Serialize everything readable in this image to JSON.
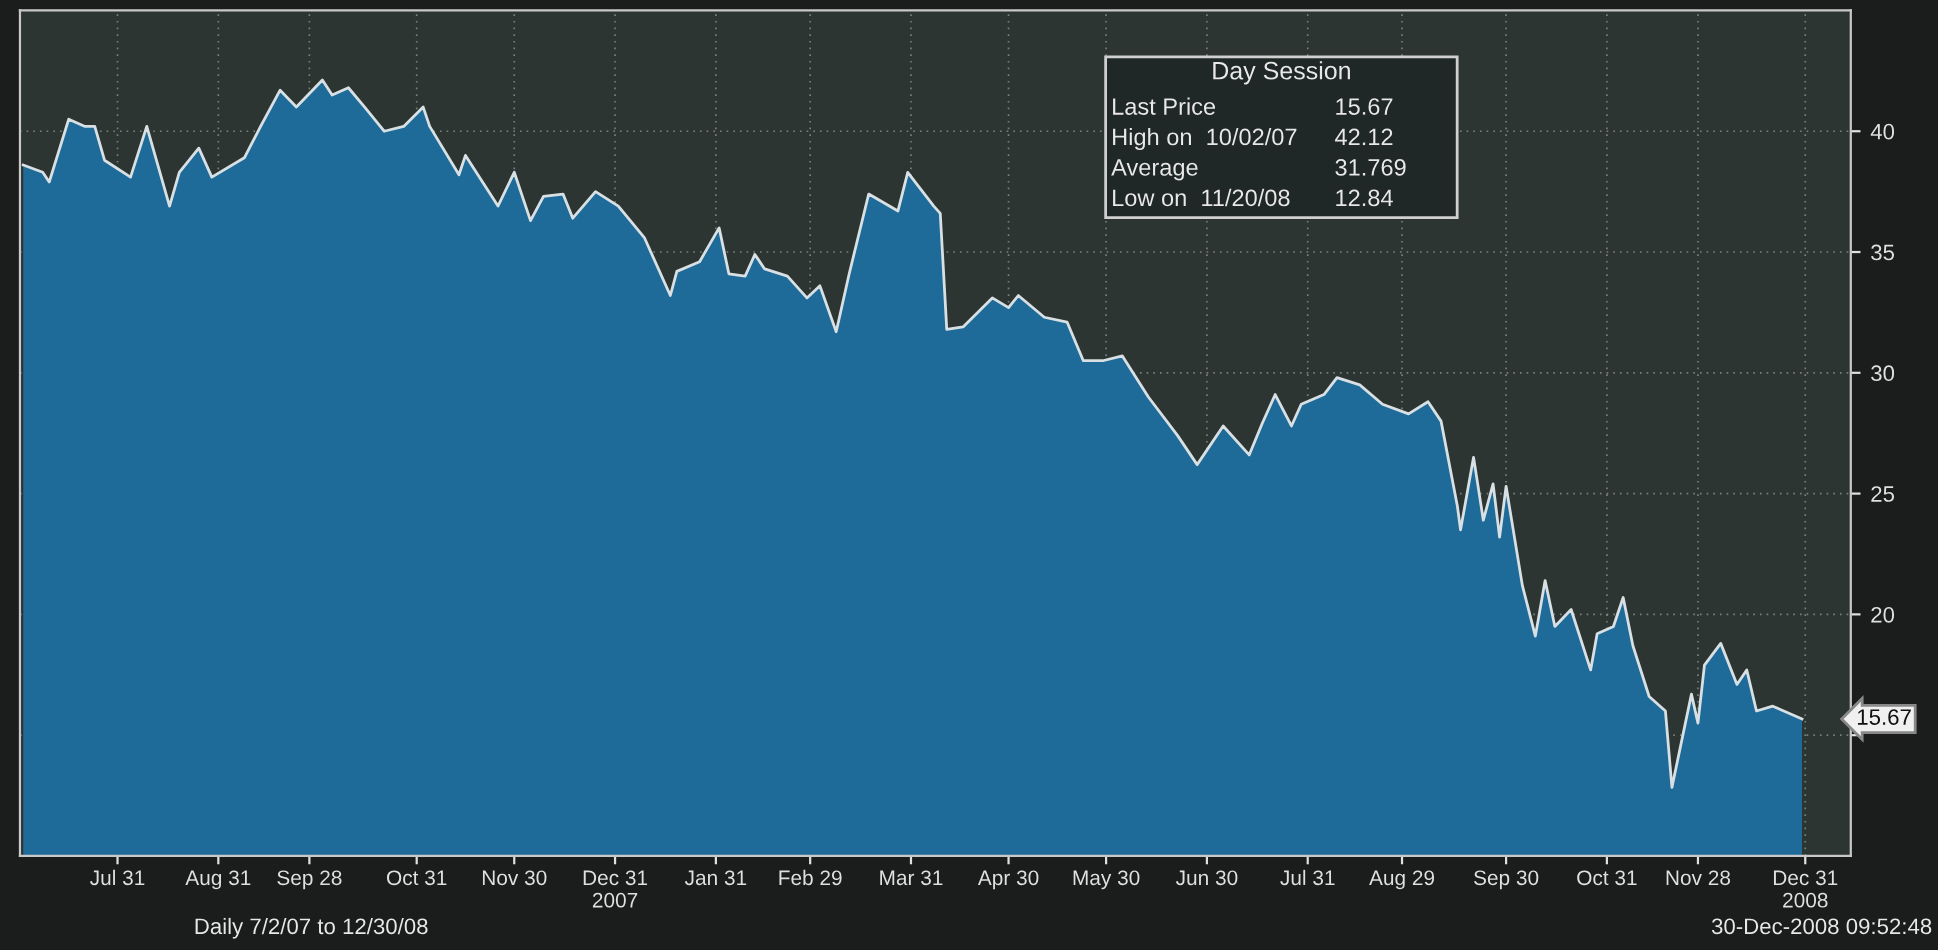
{
  "chart_data": {
    "type": "area",
    "x": [
      "2007-07-02",
      "2007-07-08",
      "2007-07-10",
      "2007-07-16",
      "2007-07-21",
      "2007-07-24",
      "2007-07-27",
      "2007-08-04",
      "2007-08-09",
      "2007-08-16",
      "2007-08-19",
      "2007-08-25",
      "2007-08-29",
      "2007-09-08",
      "2007-09-13",
      "2007-09-19",
      "2007-09-24",
      "2007-10-02",
      "2007-10-05",
      "2007-10-10",
      "2007-10-15",
      "2007-10-21",
      "2007-10-27",
      "2007-11-02",
      "2007-11-04",
      "2007-11-13",
      "2007-11-15",
      "2007-11-25",
      "2007-11-30",
      "2007-12-05",
      "2007-12-09",
      "2007-12-15",
      "2007-12-18",
      "2007-12-25",
      "2008-01-01",
      "2008-01-09",
      "2008-01-17",
      "2008-01-19",
      "2008-01-26",
      "2008-02-01",
      "2008-02-04",
      "2008-02-09",
      "2008-02-12",
      "2008-02-15",
      "2008-02-22",
      "2008-02-28",
      "2008-03-03",
      "2008-03-08",
      "2008-03-12",
      "2008-03-18",
      "2008-03-27",
      "2008-03-30",
      "2008-04-07",
      "2008-04-09",
      "2008-04-11",
      "2008-04-16",
      "2008-04-25",
      "2008-04-30",
      "2008-05-03",
      "2008-05-11",
      "2008-05-18",
      "2008-05-23",
      "2008-05-29",
      "2008-06-04",
      "2008-06-12",
      "2008-06-21",
      "2008-06-27",
      "2008-07-05",
      "2008-07-13",
      "2008-07-17",
      "2008-07-21",
      "2008-07-26",
      "2008-07-29",
      "2008-08-05",
      "2008-08-09",
      "2008-08-16",
      "2008-08-23",
      "2008-08-31",
      "2008-09-06",
      "2008-09-10",
      "2008-09-15",
      "2008-09-16",
      "2008-09-20",
      "2008-09-23",
      "2008-09-26",
      "2008-09-28",
      "2008-09-30",
      "2008-10-05",
      "2008-10-09",
      "2008-10-12",
      "2008-10-15",
      "2008-10-20",
      "2008-10-26",
      "2008-10-28",
      "2008-11-02",
      "2008-11-05",
      "2008-11-08",
      "2008-11-13",
      "2008-11-18",
      "2008-11-20",
      "2008-11-26",
      "2008-11-28",
      "2008-11-30",
      "2008-12-05",
      "2008-12-10",
      "2008-12-13",
      "2008-12-16",
      "2008-12-21",
      "2008-12-30"
    ],
    "values": [
      38.6,
      38.3,
      37.9,
      40.5,
      40.2,
      40.2,
      38.8,
      38.1,
      40.2,
      36.9,
      38.3,
      39.3,
      38.1,
      38.9,
      40.2,
      41.7,
      41.0,
      42.12,
      41.5,
      41.8,
      41.0,
      40.0,
      40.2,
      41.0,
      40.2,
      38.2,
      39.0,
      36.9,
      38.3,
      36.3,
      37.3,
      37.4,
      36.4,
      37.5,
      36.9,
      35.6,
      33.2,
      34.2,
      34.6,
      36.0,
      34.1,
      34.0,
      34.9,
      34.3,
      34.0,
      33.1,
      33.6,
      31.7,
      34.1,
      37.4,
      36.7,
      38.3,
      36.9,
      36.6,
      31.8,
      31.9,
      33.1,
      32.7,
      33.2,
      32.3,
      32.1,
      30.5,
      30.5,
      30.7,
      29.0,
      27.4,
      26.2,
      27.8,
      26.6,
      27.9,
      29.1,
      27.8,
      28.7,
      29.1,
      29.8,
      29.5,
      28.7,
      28.3,
      28.8,
      28.0,
      24.5,
      23.5,
      26.5,
      23.9,
      25.4,
      23.2,
      25.3,
      21.2,
      19.1,
      21.4,
      19.5,
      20.2,
      17.7,
      19.2,
      19.5,
      20.7,
      18.7,
      16.6,
      16.0,
      12.84,
      16.7,
      15.5,
      17.9,
      18.8,
      17.1,
      17.7,
      16.0,
      16.2,
      15.67
    ],
    "color": "#1e6a98",
    "xlim": [
      "2007-07-01",
      "2009-01-14"
    ],
    "xticks": [
      {
        "value": "2007-07-31",
        "label": "Jul 31"
      },
      {
        "value": "2007-08-31",
        "label": "Aug 31"
      },
      {
        "value": "2007-09-28",
        "label": "Sep 28"
      },
      {
        "value": "2007-10-31",
        "label": "Oct 31"
      },
      {
        "value": "2007-11-30",
        "label": "Nov 30"
      },
      {
        "value": "2007-12-31",
        "label": "Dec 31\n2007"
      },
      {
        "value": "2008-01-31",
        "label": "Jan 31"
      },
      {
        "value": "2008-02-29",
        "label": "Feb 29"
      },
      {
        "value": "2008-03-31",
        "label": "Mar 31"
      },
      {
        "value": "2008-04-30",
        "label": "Apr 30"
      },
      {
        "value": "2008-05-30",
        "label": "May 30"
      },
      {
        "value": "2008-06-30",
        "label": "Jun 30"
      },
      {
        "value": "2008-07-31",
        "label": "Jul 31"
      },
      {
        "value": "2008-08-29",
        "label": "Aug 29"
      },
      {
        "value": "2008-09-30",
        "label": "Sep 30"
      },
      {
        "value": "2008-10-31",
        "label": "Oct 31"
      },
      {
        "value": "2008-11-28",
        "label": "Nov 28"
      },
      {
        "value": "2008-12-31",
        "label": "Dec 31\n2008"
      }
    ],
    "ylim": [
      10,
      45
    ],
    "yticks": [
      {
        "value": 15,
        "label": null
      },
      20,
      25,
      30,
      35,
      40
    ],
    "grid": true,
    "annotations": [
      "Day Session",
      "Last Price",
      "15.67",
      "High on  10/02/07",
      "42.12",
      "Average",
      "31.769",
      "Low on  11/20/08",
      "12.84",
      "Daily 7/2/07 to 12/30/08",
      "30-Dec-2008 09:52:48",
      {
        "text": "15.67",
        "x": "2008-12-30",
        "y": 15.67
      }
    ]
  }
}
